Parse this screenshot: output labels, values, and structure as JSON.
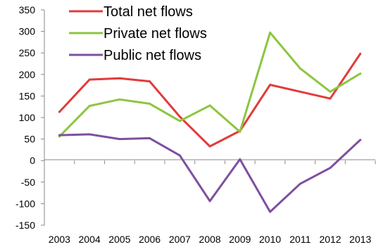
{
  "chart_data": {
    "type": "line",
    "x": [
      "2003",
      "2004",
      "2005",
      "2006",
      "2007",
      "2008",
      "2009",
      "2010",
      "2011",
      "2012",
      "2013"
    ],
    "series": [
      {
        "name": "Total net flows",
        "color": "#e23b3b",
        "values": [
          113,
          188,
          191,
          184,
          102,
          33,
          69,
          176,
          160,
          144,
          248
        ]
      },
      {
        "name": "Private net flows",
        "color": "#8cc63f",
        "values": [
          56,
          127,
          142,
          132,
          92,
          128,
          67,
          297,
          214,
          160,
          202
        ]
      },
      {
        "name": "Public net flows",
        "color": "#7e4fa0",
        "values": [
          59,
          61,
          50,
          52,
          12,
          -94,
          3,
          -119,
          -54,
          -17,
          48
        ]
      }
    ],
    "yticks": [
      "350",
      "300",
      "250",
      "200",
      "150",
      "100",
      "50",
      "0",
      "-50",
      "-100",
      "-150"
    ],
    "ylim": [
      -150,
      350
    ],
    "grid": false,
    "legend_position": "top-left"
  }
}
